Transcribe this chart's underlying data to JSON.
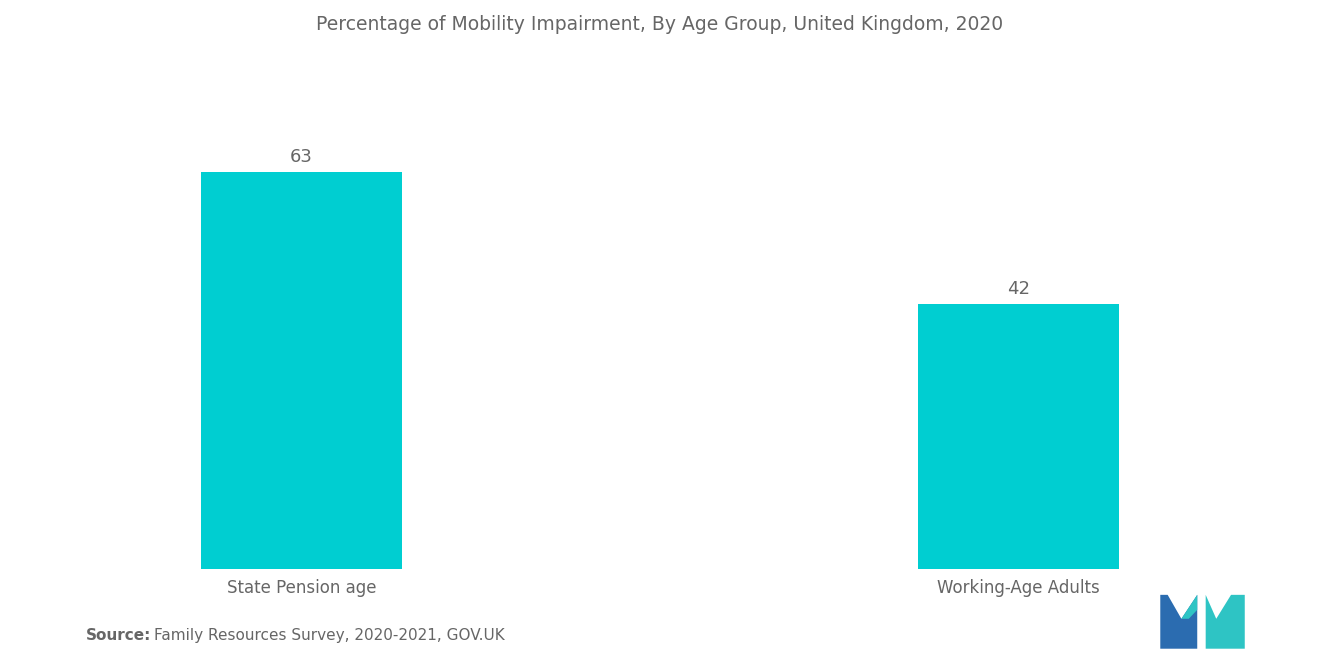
{
  "title": "Percentage of Mobility Impairment, By Age Group, United Kingdom, 2020",
  "categories": [
    "State Pension age",
    "Working-Age Adults"
  ],
  "values": [
    63,
    42
  ],
  "bar_color": "#00CED1",
  "bar_width": 0.28,
  "ylim": [
    0,
    80
  ],
  "value_labels": [
    "63",
    "42"
  ],
  "source_bold": "Source:",
  "source_text": "  Family Resources Survey, 2020-2021, GOV.UK",
  "title_fontsize": 13.5,
  "label_fontsize": 12,
  "value_fontsize": 13,
  "source_fontsize": 11,
  "background_color": "#ffffff",
  "text_color": "#666666",
  "bar_positions": [
    1,
    2
  ]
}
